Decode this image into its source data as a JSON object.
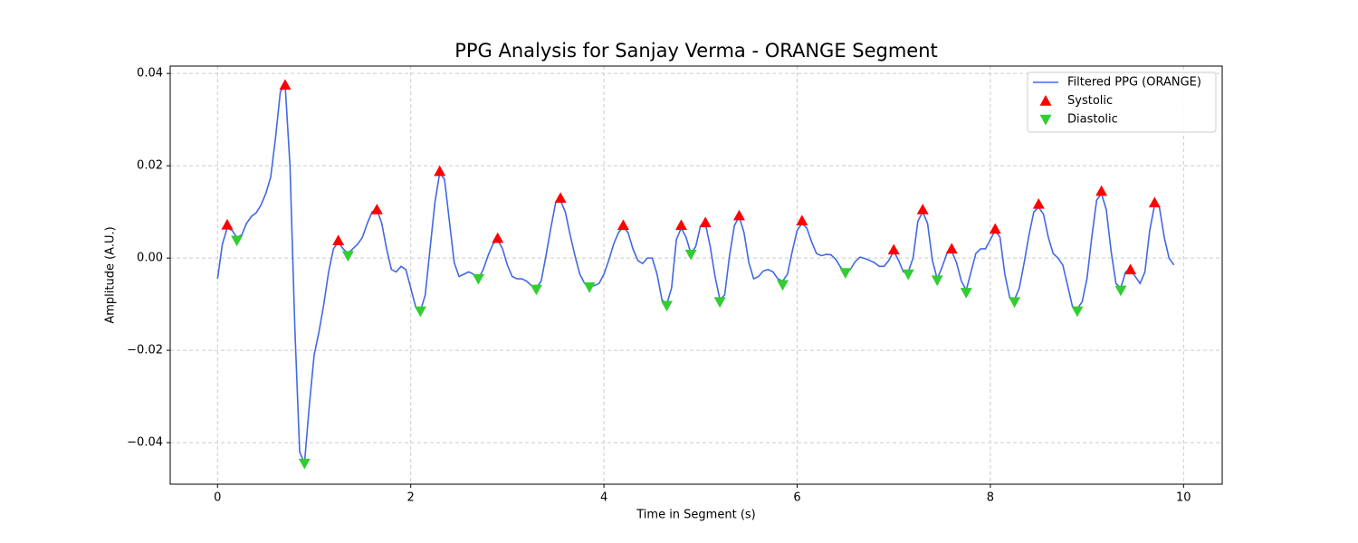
{
  "chart_data": {
    "type": "line",
    "title": "PPG Analysis for Sanjay Verma - ORANGE Segment",
    "xlabel": "Time in Segment (s)",
    "ylabel": "Amplitude (A.U.)",
    "xlim": [
      -0.49,
      10.4
    ],
    "ylim": [
      -0.049,
      0.0416
    ],
    "xticks": [
      0,
      2,
      4,
      6,
      8,
      10
    ],
    "yticks": [
      {
        "value": -0.04,
        "label": "−0.04"
      },
      {
        "value": -0.02,
        "label": "−0.02"
      },
      {
        "value": 0,
        "label": "0.00"
      },
      0.02,
      0.04
    ],
    "grid": true,
    "legend_loc": "upper right",
    "series": [
      {
        "name": "Filtered PPG (ORANGE)",
        "color": "#4169e1",
        "marker": "line",
        "x": [
          0,
          0.05,
          0.1,
          0.15,
          0.2,
          0.25,
          0.3,
          0.35,
          0.4,
          0.45,
          0.5,
          0.55,
          0.6,
          0.65,
          0.7,
          0.75,
          0.8,
          0.85,
          0.9,
          0.95,
          1,
          1.05,
          1.1,
          1.15,
          1.2,
          1.25,
          1.3,
          1.35,
          1.4,
          1.45,
          1.5,
          1.55,
          1.6,
          1.65,
          1.7,
          1.75,
          1.8,
          1.85,
          1.9,
          1.95,
          2,
          2.05,
          2.1,
          2.15,
          2.2,
          2.25,
          2.3,
          2.35,
          2.4,
          2.45,
          2.5,
          2.55,
          2.6,
          2.65,
          2.7,
          2.75,
          2.8,
          2.85,
          2.9,
          2.95,
          3,
          3.05,
          3.1,
          3.15,
          3.2,
          3.25,
          3.3,
          3.35,
          3.4,
          3.45,
          3.5,
          3.55,
          3.6,
          3.65,
          3.7,
          3.75,
          3.8,
          3.85,
          3.9,
          3.95,
          4,
          4.05,
          4.1,
          4.15,
          4.2,
          4.25,
          4.3,
          4.35,
          4.4,
          4.45,
          4.5,
          4.55,
          4.6,
          4.65,
          4.7,
          4.75,
          4.8,
          4.85,
          4.9,
          4.95,
          5,
          5.05,
          5.1,
          5.15,
          5.2,
          5.25,
          5.3,
          5.35,
          5.4,
          5.45,
          5.5,
          5.55,
          5.6,
          5.65,
          5.7,
          5.75,
          5.8,
          5.85,
          5.9,
          5.95,
          6,
          6.05,
          6.1,
          6.15,
          6.2,
          6.25,
          6.3,
          6.35,
          6.4,
          6.45,
          6.5,
          6.55,
          6.6,
          6.65,
          6.7,
          6.75,
          6.8,
          6.85,
          6.9,
          6.95,
          7,
          7.05,
          7.1,
          7.15,
          7.2,
          7.25,
          7.3,
          7.35,
          7.4,
          7.45,
          7.5,
          7.55,
          7.6,
          7.65,
          7.7,
          7.75,
          7.8,
          7.85,
          7.9,
          7.95,
          8,
          8.05,
          8.1,
          8.15,
          8.2,
          8.25,
          8.3,
          8.35,
          8.4,
          8.45,
          8.5,
          8.55,
          8.6,
          8.65,
          8.7,
          8.75,
          8.8,
          8.85,
          8.9,
          8.95,
          9,
          9.05,
          9.1,
          9.15,
          9.2,
          9.25,
          9.3,
          9.35,
          9.4,
          9.45,
          9.5,
          9.55,
          9.6,
          9.65,
          9.7,
          9.75,
          9.8,
          9.85,
          9.9
        ],
        "values": [
          -0.0045,
          0.003,
          0.0065,
          0.006,
          0.0045,
          0.005,
          0.0075,
          0.009,
          0.0098,
          0.0115,
          0.014,
          0.0175,
          0.026,
          0.036,
          0.0375,
          0.02,
          -0.015,
          -0.042,
          -0.0445,
          -0.032,
          -0.021,
          -0.016,
          -0.01,
          -0.003,
          0.002,
          0.0035,
          0.002,
          0.001,
          0.002,
          0.003,
          0.0045,
          0.0075,
          0.01,
          0.0105,
          0.0075,
          0.002,
          -0.0025,
          -0.003,
          -0.0018,
          -0.0025,
          -0.0065,
          -0.0105,
          -0.0115,
          -0.008,
          0.002,
          0.012,
          0.0185,
          0.017,
          0.008,
          -0.001,
          -0.004,
          -0.0035,
          -0.003,
          -0.0035,
          -0.0045,
          -0.0025,
          0.0005,
          0.003,
          0.004,
          0.002,
          -0.0015,
          -0.004,
          -0.0045,
          -0.0045,
          -0.005,
          -0.006,
          -0.0065,
          -0.005,
          0.0005,
          0.0065,
          0.012,
          0.0125,
          0.01,
          0.005,
          0.0005,
          -0.0035,
          -0.0055,
          -0.006,
          -0.006,
          -0.0055,
          -0.0035,
          -0.0005,
          0.003,
          0.0055,
          0.0068,
          0.0055,
          0.002,
          -0.0005,
          -0.0012,
          0,
          0,
          -0.0035,
          -0.009,
          -0.01,
          -0.0065,
          0.004,
          0.0065,
          0.0045,
          0.001,
          0.0025,
          0.007,
          0.0075,
          0.0025,
          -0.004,
          -0.009,
          -0.008,
          0.0005,
          0.007,
          0.009,
          0.0055,
          -0.001,
          -0.0045,
          -0.004,
          -0.0028,
          -0.0025,
          -0.003,
          -0.0045,
          -0.005,
          -0.0035,
          0.0015,
          0.006,
          0.0075,
          0.0065,
          0.0035,
          0.001,
          0.0005,
          0.0008,
          0.0007,
          -0.0003,
          -0.002,
          -0.003,
          -0.0025,
          -0.0008,
          0.0002,
          -0.0001,
          -0.0005,
          -0.001,
          -0.0018,
          -0.0018,
          -0.0005,
          0.0015,
          -0.0005,
          -0.003,
          -0.003,
          0,
          0.008,
          0.01,
          0.0075,
          -0.0005,
          -0.0045,
          -0.002,
          0.001,
          0.0015,
          -0.001,
          -0.005,
          -0.007,
          -0.003,
          0.001,
          0.002,
          0.002,
          0.004,
          0.006,
          0.0045,
          -0.0035,
          -0.0085,
          -0.009,
          -0.0065,
          -0.001,
          0.005,
          0.01,
          0.011,
          0.0095,
          0.0045,
          0.001,
          0,
          -0.0015,
          -0.006,
          -0.0105,
          -0.011,
          -0.0095,
          -0.0045,
          0.0045,
          0.0125,
          0.014,
          0.0105,
          0.0015,
          -0.0055,
          -0.0065,
          -0.003,
          -0.0025,
          -0.004,
          -0.0055,
          -0.003,
          0.006,
          0.0115,
          0.011,
          0.0045,
          0,
          -0.0015
        ]
      },
      {
        "name": "Systolic",
        "color": "#ff0000",
        "marker": "^",
        "x": [
          0.1,
          0.7,
          1.25,
          1.65,
          2.3,
          2.9,
          3.55,
          4.2,
          4.8,
          5.05,
          5.4,
          6.05,
          7.0,
          7.3,
          7.6,
          8.05,
          8.5,
          9.15,
          9.45,
          9.7
        ],
        "values": [
          0.0072,
          0.0375,
          0.0038,
          0.0105,
          0.0188,
          0.0043,
          0.013,
          0.0071,
          0.0071,
          0.0077,
          0.0092,
          0.0081,
          0.0018,
          0.0105,
          0.002,
          0.0063,
          0.0117,
          0.0145,
          -0.0025,
          0.012
        ]
      },
      {
        "name": "Diastolic",
        "color": "#32cd32",
        "marker": "v",
        "x": [
          0.2,
          0.9,
          1.35,
          2.1,
          2.7,
          3.3,
          3.85,
          4.65,
          4.9,
          5.2,
          5.85,
          6.5,
          7.15,
          7.45,
          7.75,
          8.25,
          8.9,
          9.35
        ],
        "values": [
          0.0038,
          -0.0445,
          0.0005,
          -0.0115,
          -0.0045,
          -0.0068,
          -0.0063,
          -0.0103,
          0.0008,
          -0.0095,
          -0.0058,
          -0.0032,
          -0.0035,
          -0.0048,
          -0.0075,
          -0.0095,
          -0.0115,
          -0.007
        ]
      }
    ]
  }
}
